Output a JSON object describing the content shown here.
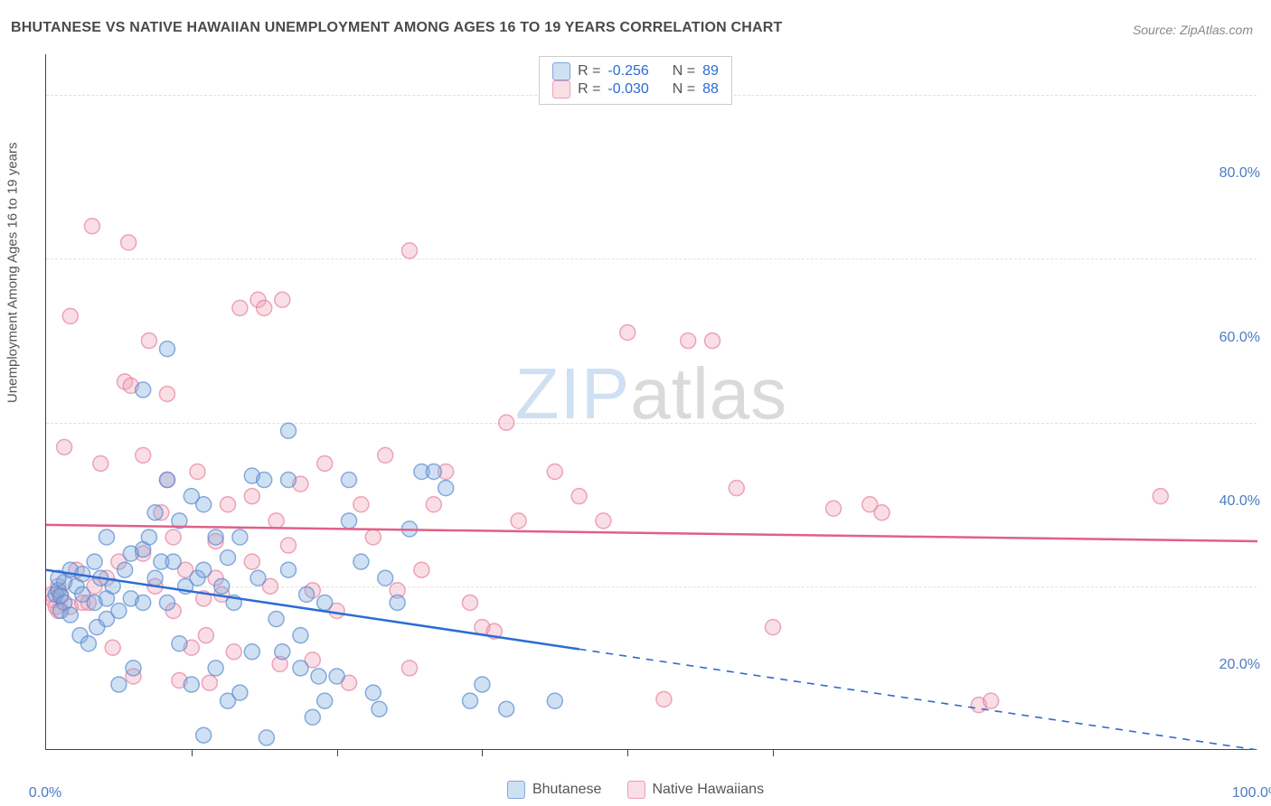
{
  "title": "BHUTANESE VS NATIVE HAWAIIAN UNEMPLOYMENT AMONG AGES 16 TO 19 YEARS CORRELATION CHART",
  "source": "Source: ZipAtlas.com",
  "y_axis_label": "Unemployment Among Ages 16 to 19 years",
  "watermark_zip": "ZIP",
  "watermark_atlas": "atlas",
  "chart": {
    "type": "scatter",
    "background_color": "#ffffff",
    "grid_color": "#e0e0e0",
    "axis_color": "#444444",
    "label_color": "#4a7bc8",
    "xlim": [
      0,
      100
    ],
    "ylim": [
      0,
      85
    ],
    "x_ticks": [
      0,
      12,
      24,
      36,
      48,
      60,
      100
    ],
    "x_tick_labels": {
      "0": "0.0%",
      "100": "100.0%"
    },
    "y_grid": [
      20,
      40,
      60,
      80
    ],
    "y_tick_labels": {
      "20": "20.0%",
      "40": "40.0%",
      "60": "60.0%",
      "80": "80.0%"
    },
    "marker_radius": 8.5,
    "line_width": 2.5,
    "series": [
      {
        "name": "Bhutanese",
        "color_fill": "rgba(120,165,220,0.35)",
        "color_stroke": "rgba(90,140,210,0.7)",
        "line_color": "#2b6cd4",
        "R": "-0.256",
        "N": "89",
        "regression": {
          "y_at_x0": 22,
          "y_at_x100": 0,
          "solid_until_x": 44
        },
        "points": [
          [
            0.8,
            19
          ],
          [
            1,
            19.5
          ],
          [
            1.2,
            18.8
          ],
          [
            1.5,
            18
          ],
          [
            1.5,
            20.5
          ],
          [
            1,
            21
          ],
          [
            1.2,
            17
          ],
          [
            2,
            16.5
          ],
          [
            2,
            22
          ],
          [
            2.5,
            20
          ],
          [
            2.8,
            14
          ],
          [
            3,
            21.5
          ],
          [
            3,
            19
          ],
          [
            3.5,
            13
          ],
          [
            4,
            23
          ],
          [
            4,
            18
          ],
          [
            4.2,
            15
          ],
          [
            4.5,
            21
          ],
          [
            5,
            26
          ],
          [
            5,
            18.5
          ],
          [
            5,
            16
          ],
          [
            5.5,
            20
          ],
          [
            6,
            17
          ],
          [
            6,
            8
          ],
          [
            6.5,
            22
          ],
          [
            7,
            24
          ],
          [
            7,
            18.5
          ],
          [
            7.2,
            10
          ],
          [
            8,
            24.5
          ],
          [
            8,
            18
          ],
          [
            8,
            44
          ],
          [
            8.5,
            26
          ],
          [
            9,
            21
          ],
          [
            9,
            29
          ],
          [
            9.5,
            23
          ],
          [
            10,
            33
          ],
          [
            10,
            18
          ],
          [
            10,
            49
          ],
          [
            10.5,
            23
          ],
          [
            11,
            28
          ],
          [
            11,
            13
          ],
          [
            11.5,
            20
          ],
          [
            12,
            31
          ],
          [
            12,
            8
          ],
          [
            12.5,
            21
          ],
          [
            13,
            22
          ],
          [
            13,
            30
          ],
          [
            13,
            1.8
          ],
          [
            14,
            10
          ],
          [
            14,
            26
          ],
          [
            14.5,
            20
          ],
          [
            15,
            23.5
          ],
          [
            15,
            6
          ],
          [
            15.5,
            18
          ],
          [
            16,
            7
          ],
          [
            16,
            26
          ],
          [
            17,
            12
          ],
          [
            17,
            33.5
          ],
          [
            17.5,
            21
          ],
          [
            18,
            33
          ],
          [
            18.2,
            1.5
          ],
          [
            19,
            16
          ],
          [
            19.5,
            12
          ],
          [
            20,
            39
          ],
          [
            20,
            22
          ],
          [
            20,
            33
          ],
          [
            21,
            10
          ],
          [
            21,
            14
          ],
          [
            21.5,
            19
          ],
          [
            22,
            4
          ],
          [
            22.5,
            9
          ],
          [
            23,
            18
          ],
          [
            23,
            6
          ],
          [
            24,
            9
          ],
          [
            25,
            33
          ],
          [
            25,
            28
          ],
          [
            26,
            23
          ],
          [
            27,
            7
          ],
          [
            27.5,
            5
          ],
          [
            28,
            21
          ],
          [
            29,
            18
          ],
          [
            30,
            27
          ],
          [
            31,
            34
          ],
          [
            32,
            34
          ],
          [
            33,
            32
          ],
          [
            35,
            6
          ],
          [
            36,
            8
          ],
          [
            38,
            5
          ],
          [
            42,
            6
          ]
        ]
      },
      {
        "name": "Native Hawaiians",
        "color_fill": "rgba(240,160,180,0.35)",
        "color_stroke": "rgba(230,130,160,0.7)",
        "line_color": "#e06088",
        "R": "-0.030",
        "N": "88",
        "regression": {
          "y_at_x0": 27.5,
          "y_at_x100": 25.5,
          "solid_until_x": 100
        },
        "points": [
          [
            0.5,
            19
          ],
          [
            0.6,
            18.3
          ],
          [
            0.8,
            17.5
          ],
          [
            1,
            20
          ],
          [
            1,
            17
          ],
          [
            1.2,
            19
          ],
          [
            1.5,
            37
          ],
          [
            2,
            53
          ],
          [
            2,
            17.5
          ],
          [
            2.5,
            22
          ],
          [
            3,
            18
          ],
          [
            3.5,
            18
          ],
          [
            3.8,
            64
          ],
          [
            4,
            20
          ],
          [
            4.5,
            35
          ],
          [
            5,
            21
          ],
          [
            5.5,
            12.5
          ],
          [
            6,
            23
          ],
          [
            6.5,
            45
          ],
          [
            6.8,
            62
          ],
          [
            7,
            44.5
          ],
          [
            7.2,
            9
          ],
          [
            8,
            36
          ],
          [
            8,
            24
          ],
          [
            8.5,
            50
          ],
          [
            9,
            20
          ],
          [
            9.5,
            29
          ],
          [
            10,
            43.5
          ],
          [
            10,
            33
          ],
          [
            10.5,
            17
          ],
          [
            10.5,
            26
          ],
          [
            11,
            8.5
          ],
          [
            11.5,
            22
          ],
          [
            12,
            12.5
          ],
          [
            12.5,
            34
          ],
          [
            13,
            18.5
          ],
          [
            13.2,
            14
          ],
          [
            13.5,
            8.2
          ],
          [
            14,
            21
          ],
          [
            14,
            25.5
          ],
          [
            14.5,
            19
          ],
          [
            15,
            30
          ],
          [
            15.5,
            12
          ],
          [
            16,
            54
          ],
          [
            17,
            23
          ],
          [
            17,
            31
          ],
          [
            17.5,
            55
          ],
          [
            18,
            54
          ],
          [
            18.5,
            20
          ],
          [
            19,
            28
          ],
          [
            19.3,
            10.5
          ],
          [
            19.5,
            55
          ],
          [
            20,
            25
          ],
          [
            21,
            32.5
          ],
          [
            22,
            11
          ],
          [
            22,
            19.5
          ],
          [
            23,
            35
          ],
          [
            24,
            17
          ],
          [
            25,
            8.2
          ],
          [
            26,
            30
          ],
          [
            27,
            26
          ],
          [
            28,
            36
          ],
          [
            29,
            19.5
          ],
          [
            30,
            10
          ],
          [
            30,
            61
          ],
          [
            31,
            22
          ],
          [
            32,
            30
          ],
          [
            33,
            34
          ],
          [
            35,
            18
          ],
          [
            36,
            15
          ],
          [
            37,
            14.5
          ],
          [
            38,
            40
          ],
          [
            39,
            28
          ],
          [
            42,
            34
          ],
          [
            44,
            31
          ],
          [
            46,
            28
          ],
          [
            48,
            51
          ],
          [
            51,
            6.2
          ],
          [
            53,
            50
          ],
          [
            55,
            50
          ],
          [
            57,
            32
          ],
          [
            60,
            15
          ],
          [
            65,
            29.5
          ],
          [
            68,
            30
          ],
          [
            69,
            29
          ],
          [
            77,
            5.5
          ],
          [
            78,
            6
          ],
          [
            92,
            31
          ]
        ]
      }
    ]
  },
  "stats": {
    "r_label": "R =",
    "n_label": "N ="
  },
  "legend": {
    "s1": "Bhutanese",
    "s2": "Native Hawaiians"
  }
}
